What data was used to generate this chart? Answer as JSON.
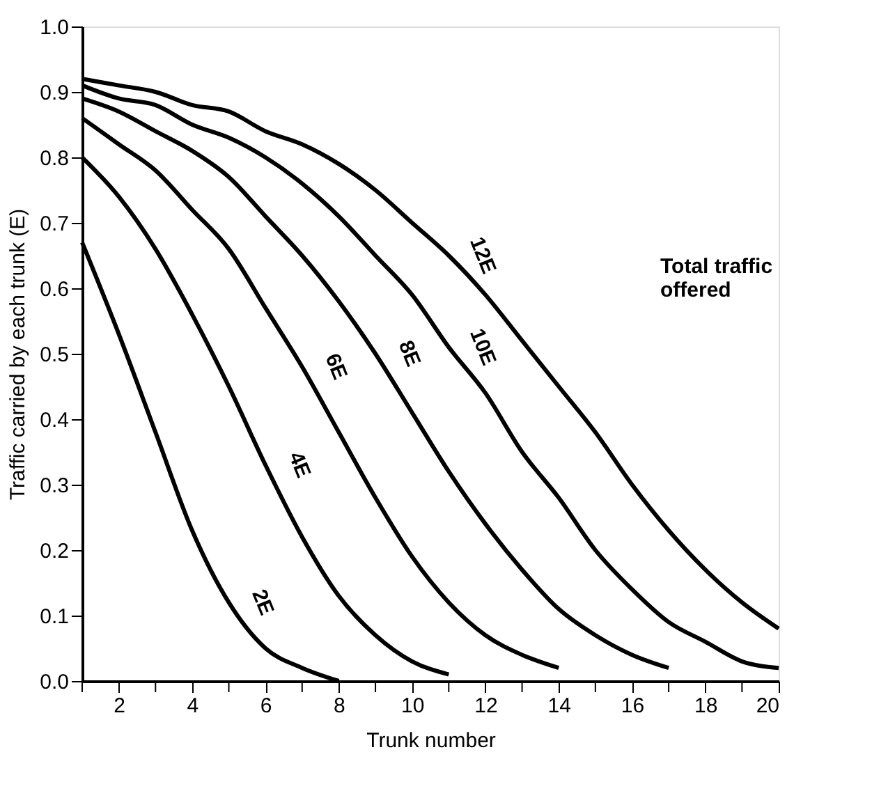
{
  "chart_data": {
    "type": "line",
    "xlabel": "Trunk number",
    "ylabel": "Traffic carried by each trunk (E)",
    "xlim": [
      1,
      20
    ],
    "xticks": [
      {
        "value": 1,
        "label": null
      },
      2,
      {
        "value": 3,
        "label": null
      },
      4,
      {
        "value": 5,
        "label": null
      },
      6,
      {
        "value": 7,
        "label": null
      },
      8,
      {
        "value": 9,
        "label": null
      },
      10,
      {
        "value": 11,
        "label": null
      },
      12,
      {
        "value": 13,
        "label": null
      },
      14,
      {
        "value": 15,
        "label": null
      },
      16,
      {
        "value": 17,
        "label": null
      },
      18,
      {
        "value": 19,
        "label": null
      },
      20
    ],
    "ylim": [
      0,
      1
    ],
    "yticks": [
      {
        "value": 0,
        "label": "0.0"
      },
      0.1,
      0.2,
      0.3,
      0.4,
      0.5,
      0.6,
      0.7,
      0.8,
      0.9,
      {
        "value": 1,
        "label": "1.0"
      }
    ],
    "grid": false,
    "legend": false,
    "marker": "none",
    "line_style": "solid",
    "series": [
      {
        "name": "2E",
        "color": "#000000",
        "x": [
          1,
          2,
          3,
          4,
          5,
          6,
          7,
          8
        ],
        "values": [
          0.67,
          0.53,
          0.38,
          0.23,
          0.12,
          0.05,
          0.02,
          0.0
        ]
      },
      {
        "name": "4E",
        "color": "#000000",
        "x": [
          1,
          2,
          3,
          4,
          5,
          6,
          7,
          8,
          9,
          10,
          11
        ],
        "values": [
          0.8,
          0.74,
          0.66,
          0.56,
          0.45,
          0.33,
          0.22,
          0.13,
          0.07,
          0.03,
          0.01
        ]
      },
      {
        "name": "6E",
        "color": "#000000",
        "x": [
          1,
          2,
          3,
          4,
          5,
          6,
          7,
          8,
          9,
          10,
          11,
          12,
          13,
          14
        ],
        "values": [
          0.86,
          0.82,
          0.78,
          0.72,
          0.66,
          0.57,
          0.48,
          0.38,
          0.28,
          0.19,
          0.12,
          0.07,
          0.04,
          0.02
        ]
      },
      {
        "name": "8E",
        "color": "#000000",
        "x": [
          1,
          2,
          3,
          4,
          5,
          6,
          7,
          8,
          9,
          10,
          11,
          12,
          13,
          14,
          15,
          16,
          17
        ],
        "values": [
          0.89,
          0.87,
          0.84,
          0.81,
          0.77,
          0.71,
          0.65,
          0.58,
          0.5,
          0.41,
          0.32,
          0.24,
          0.17,
          0.11,
          0.07,
          0.04,
          0.02
        ]
      },
      {
        "name": "10E",
        "color": "#000000",
        "x": [
          1,
          2,
          3,
          4,
          5,
          6,
          7,
          8,
          9,
          10,
          11,
          12,
          13,
          14,
          15,
          16,
          17,
          18,
          19,
          20
        ],
        "values": [
          0.91,
          0.89,
          0.88,
          0.85,
          0.83,
          0.8,
          0.76,
          0.71,
          0.65,
          0.59,
          0.51,
          0.44,
          0.35,
          0.28,
          0.2,
          0.14,
          0.09,
          0.06,
          0.03,
          0.02
        ]
      },
      {
        "name": "12E",
        "color": "#000000",
        "x": [
          1,
          2,
          3,
          4,
          5,
          6,
          7,
          8,
          9,
          10,
          11,
          12,
          13,
          14,
          15,
          16,
          17,
          18,
          19,
          20
        ],
        "values": [
          0.92,
          0.91,
          0.9,
          0.88,
          0.87,
          0.84,
          0.82,
          0.79,
          0.75,
          0.7,
          0.65,
          0.59,
          0.52,
          0.45,
          0.38,
          0.3,
          0.23,
          0.17,
          0.12,
          0.08
        ]
      }
    ],
    "annotations": [
      "Total traffic\noffered"
    ]
  }
}
